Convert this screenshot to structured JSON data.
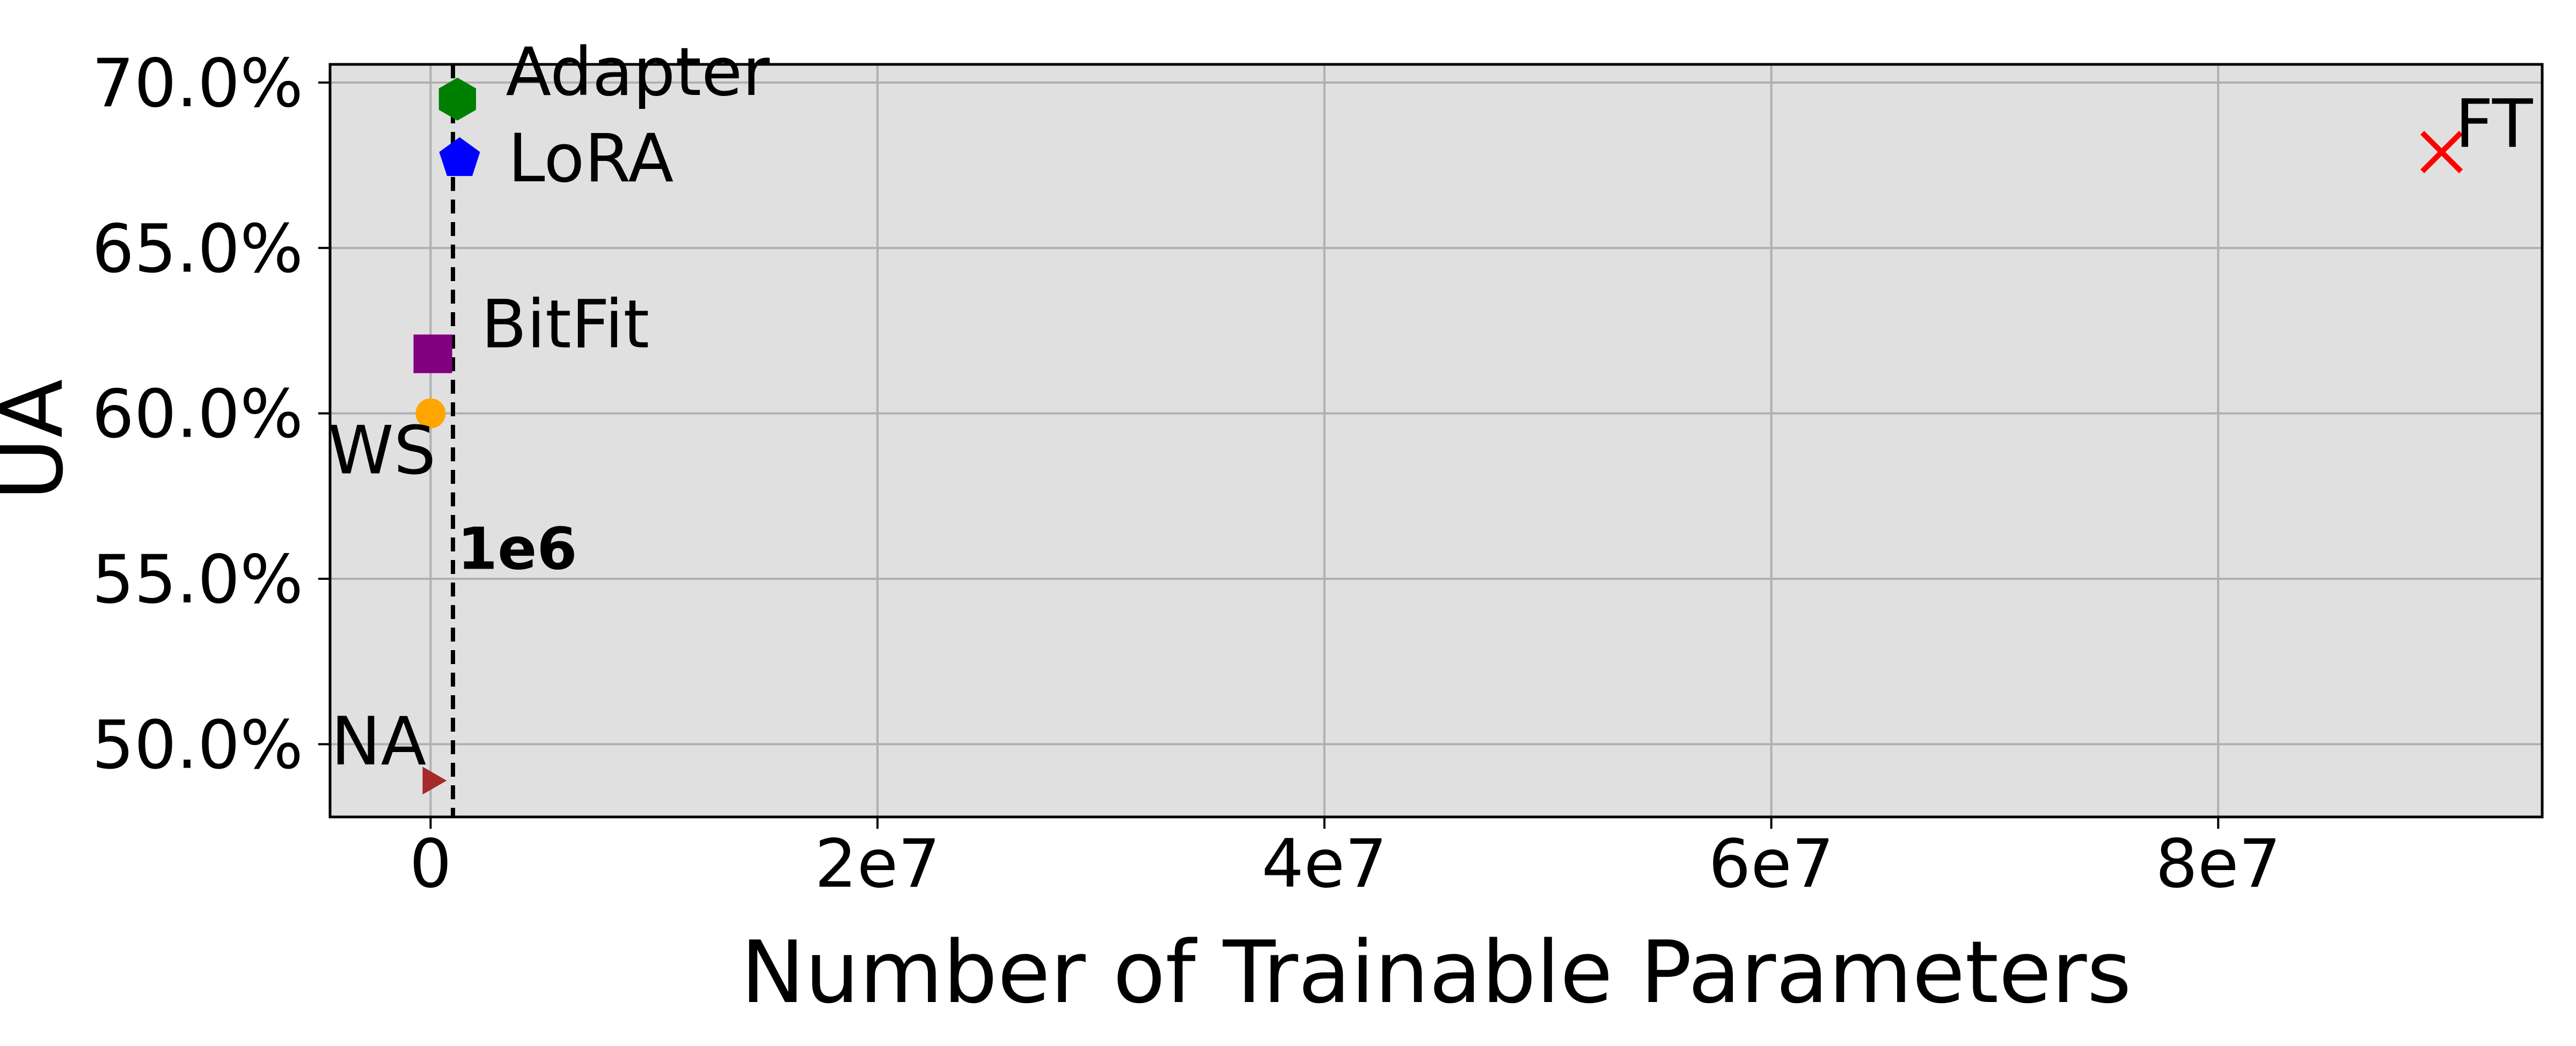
{
  "chart_data": {
    "type": "scatter",
    "xlabel": "Number of Trainable Parameters",
    "ylabel": "UA",
    "xlim": [
      -4500000,
      94500000
    ],
    "ylim": [
      47.8,
      70.55
    ],
    "x_ticks": [
      0,
      20000000,
      40000000,
      60000000,
      80000000
    ],
    "x_tick_labels": [
      "0",
      "2e7",
      "4e7",
      "6e7",
      "8e7"
    ],
    "y_ticks": [
      50,
      55,
      60,
      65,
      70
    ],
    "y_tick_labels": [
      "50.0%",
      "55.0%",
      "60.0%",
      "65.0%",
      "70.0%"
    ],
    "grid": true,
    "background_color": "#e0e0e0",
    "points": [
      {
        "label": "Adapter",
        "x": 1200000,
        "y": 69.5,
        "marker": "hexagon",
        "color": "#008000"
      },
      {
        "label": "LoRA",
        "x": 1300000,
        "y": 67.7,
        "marker": "pentagon",
        "color": "#0000ff"
      },
      {
        "label": "FT",
        "x": 90000000,
        "y": 67.9,
        "marker": "x",
        "color": "#ff0000"
      },
      {
        "label": "BitFit",
        "x": 100000,
        "y": 61.8,
        "marker": "square",
        "color": "#800080"
      },
      {
        "label": "WS",
        "x": 0,
        "y": 60.0,
        "marker": "circle",
        "color": "#ffa500"
      },
      {
        "label": "NA",
        "x": 0,
        "y": 48.9,
        "marker": "triangle-right",
        "color": "#a52a2a"
      }
    ],
    "reference_line": {
      "x": 1000000,
      "label": "1e6",
      "style": "dashed",
      "color": "#000000"
    }
  }
}
